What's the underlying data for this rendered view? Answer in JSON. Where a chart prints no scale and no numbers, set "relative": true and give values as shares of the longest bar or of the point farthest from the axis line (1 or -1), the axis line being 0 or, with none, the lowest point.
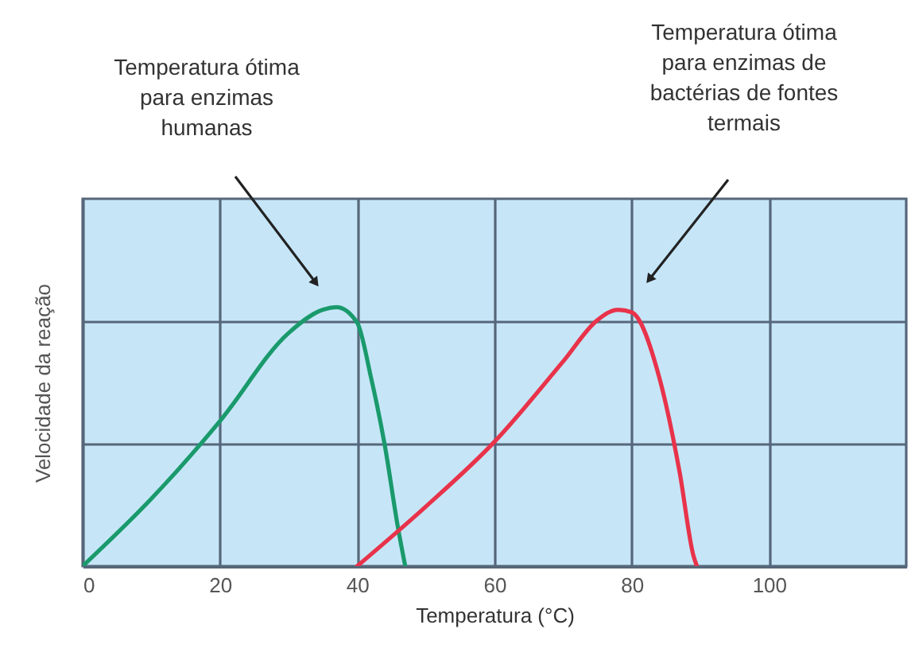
{
  "chart_data": {
    "type": "line",
    "relative": true,
    "xlabel": "Temperatura (°C)",
    "ylabel": "Velocidade da reação",
    "xlim": [
      0,
      120
    ],
    "xticks": [
      0,
      20,
      40,
      60,
      80,
      100
    ],
    "grid": true,
    "legend": false,
    "marker": "none",
    "line_style": "solid",
    "series": [
      {
        "color": "#1a9a6c",
        "x": [
          0,
          10,
          20,
          30,
          35,
          37,
          40,
          42,
          44,
          46,
          47
        ],
        "values": [
          0,
          0.26,
          0.56,
          0.9,
          0.99,
          1,
          0.94,
          0.73,
          0.47,
          0.14,
          0
        ]
      },
      {
        "color": "#e8334a",
        "x": [
          40,
          50,
          60,
          70,
          75,
          78,
          80,
          84,
          87,
          89,
          89.5
        ],
        "values": [
          0,
          0.23,
          0.48,
          0.79,
          0.95,
          0.99,
          0.98,
          0.73,
          0.36,
          0.04,
          0
        ]
      }
    ],
    "annotations": [
      "Temperatura ótima\npara enzimas\nhumanas",
      "Temperatura ótima\npara enzimas de\nbactérias de fontes\ntermais"
    ]
  }
}
